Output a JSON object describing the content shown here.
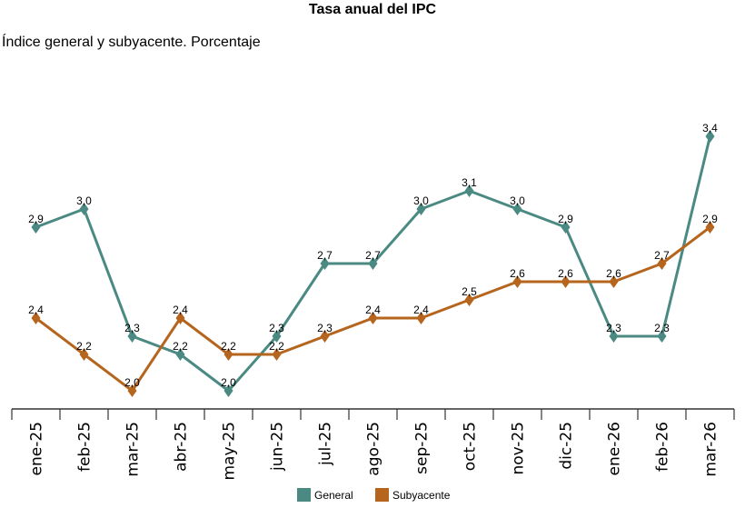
{
  "chart_data": {
    "type": "line",
    "title": "Tasa anual del IPC",
    "subtitle": "Índice general y subyacente. Porcentaje",
    "xlabel": "",
    "ylabel": "",
    "categories": [
      "ene-25",
      "feb-25",
      "mar-25",
      "abr-25",
      "may-25",
      "jun-25",
      "jul-25",
      "ago-25",
      "sep-25",
      "oct-25",
      "nov-25",
      "dic-25",
      "ene-26",
      "feb-26",
      "mar-26"
    ],
    "ylim": [
      2.0,
      3.4
    ],
    "grid": false,
    "legend_position": "bottom",
    "series": [
      {
        "name": "General",
        "color": "#4a8a82",
        "values": [
          2.9,
          3.0,
          2.3,
          2.2,
          2.0,
          2.3,
          2.7,
          2.7,
          3.0,
          3.1,
          3.0,
          2.9,
          2.3,
          2.3,
          3.4
        ],
        "labels": [
          "2,9",
          "3,0",
          "2,3",
          "2,2",
          "2,0",
          "2,3",
          "2,7",
          "2,7",
          "3,0",
          "3,1",
          "3,0",
          "2,9",
          "2,3",
          "2,3",
          "3,4"
        ]
      },
      {
        "name": "Subyacente",
        "color": "#b5651d",
        "values": [
          2.4,
          2.2,
          2.0,
          2.4,
          2.2,
          2.2,
          2.3,
          2.4,
          2.4,
          2.5,
          2.6,
          2.6,
          2.6,
          2.7,
          2.9
        ],
        "labels": [
          "2,4",
          "2,2",
          "2,0",
          "2,4",
          "2,2",
          "2,2",
          "2,3",
          "2,4",
          "2,4",
          "2,5",
          "2,6",
          "2,6",
          "2,6",
          "2,7",
          "2,9"
        ]
      }
    ]
  }
}
